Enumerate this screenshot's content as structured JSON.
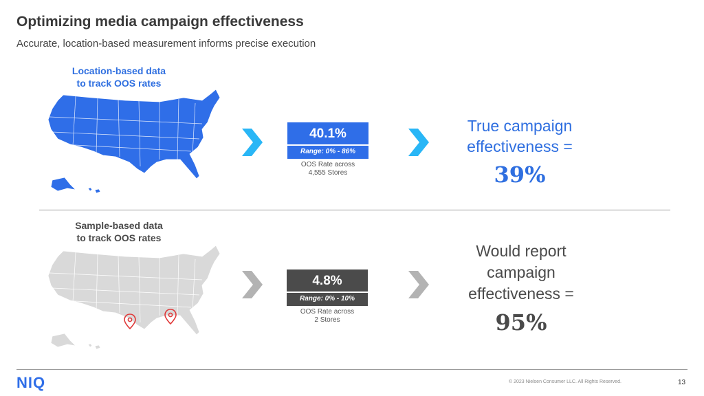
{
  "header": {
    "title": "Optimizing media campaign effectiveness",
    "subtitle": "Accurate, location-based measurement informs precise execution"
  },
  "location_section": {
    "label_line1": "Location-based data",
    "label_line2": "to track OOS rates",
    "map_color": "#2f6ee8",
    "stat_value": "40.1%",
    "stat_range": "Range: 0% - 86%",
    "caption_line1": "OOS Rate across",
    "caption_line2": "4,555 Stores",
    "result_line1": "True campaign",
    "result_line2": "effectiveness =",
    "result_value": "39%",
    "accent_color": "#29b6f6"
  },
  "sample_section": {
    "label_line1": "Sample-based data",
    "label_line2": "to track OOS rates",
    "map_color": "#d9d9d9",
    "stat_value": "4.8%",
    "stat_range": "Range: 0% - 10%",
    "caption_line1": "OOS Rate across",
    "caption_line2": "2 Stores",
    "result_line1": "Would report",
    "result_line2": "campaign",
    "result_line3": "effectiveness =",
    "result_value": "95%",
    "pin_color": "#e03a3a",
    "accent_color": "#b3b3b3"
  },
  "footer": {
    "logo": "NIQ",
    "copyright": "© 2023 Nielsen Consumer LLC. All Rights Reserved.",
    "page_number": "13"
  }
}
